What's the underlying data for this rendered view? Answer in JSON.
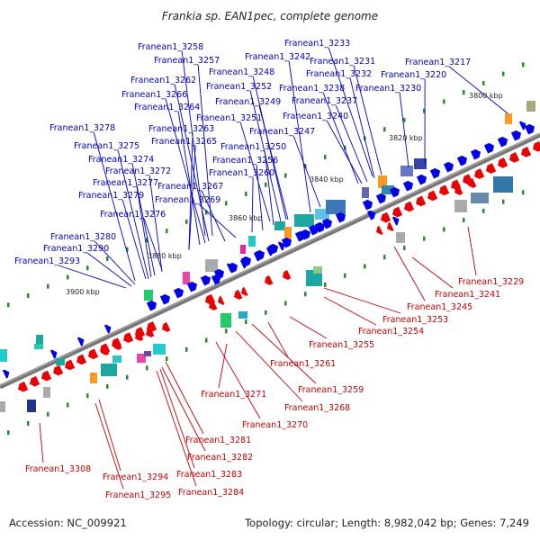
{
  "title": "Frankia sp. EAN1pec, complete genome",
  "footer": {
    "accession": "Accession: NC_009921",
    "summary": "Topology: circular; Length: 8,982,042 bp; Genes: 7,249"
  },
  "colors": {
    "forward_label": "#0000cc",
    "reverse_label": "#cc0000",
    "forward_gene": "#0000ee",
    "reverse_gene": "#ee0000",
    "backbone": "#777777",
    "gc_tick": "#2a8a2a"
  },
  "kbp_marks": [
    "3800 kbp",
    "3820 kbp",
    "3840 kbp",
    "3860 kbp",
    "3880 kbp",
    "3900 kbp"
  ],
  "forward_labels": [
    "Franean1_3258",
    "Franean1_3257",
    "Franean1_3262",
    "Franean1_3266",
    "Franean1_3264",
    "Franean1_3278",
    "Franean1_3263",
    "Franean1_3265",
    "Franean1_3275",
    "Franean1_3274",
    "Franean1_3272",
    "Franean1_3277",
    "Franean1_3279",
    "Franean1_3276",
    "Franean1_3267",
    "Franean1_3269",
    "Franean1_3260",
    "Franean1_3256",
    "Franean1_3250",
    "Franean1_3247",
    "Franean1_3251",
    "Franean1_3249",
    "Franean1_3252",
    "Franean1_3248",
    "Franean1_3242",
    "Franean1_3233",
    "Franean1_3231",
    "Franean1_3232",
    "Franean1_3238",
    "Franean1_3237",
    "Franean1_3240",
    "Franean1_3230",
    "Franean1_3220",
    "Franean1_3217",
    "Franean1_3280",
    "Franean1_3290",
    "Franean1_3293"
  ],
  "reverse_labels": [
    "Franean1_3229",
    "Franean1_3241",
    "Franean1_3245",
    "Franean1_3253",
    "Franean1_3254",
    "Franean1_3255",
    "Franean1_3261",
    "Franean1_3259",
    "Franean1_3268",
    "Franean1_3271",
    "Franean1_3270",
    "Franean1_3281",
    "Franean1_3282",
    "Franean1_3283",
    "Franean1_3284",
    "Franean1_3294",
    "Franean1_3295",
    "Franean1_3308"
  ]
}
